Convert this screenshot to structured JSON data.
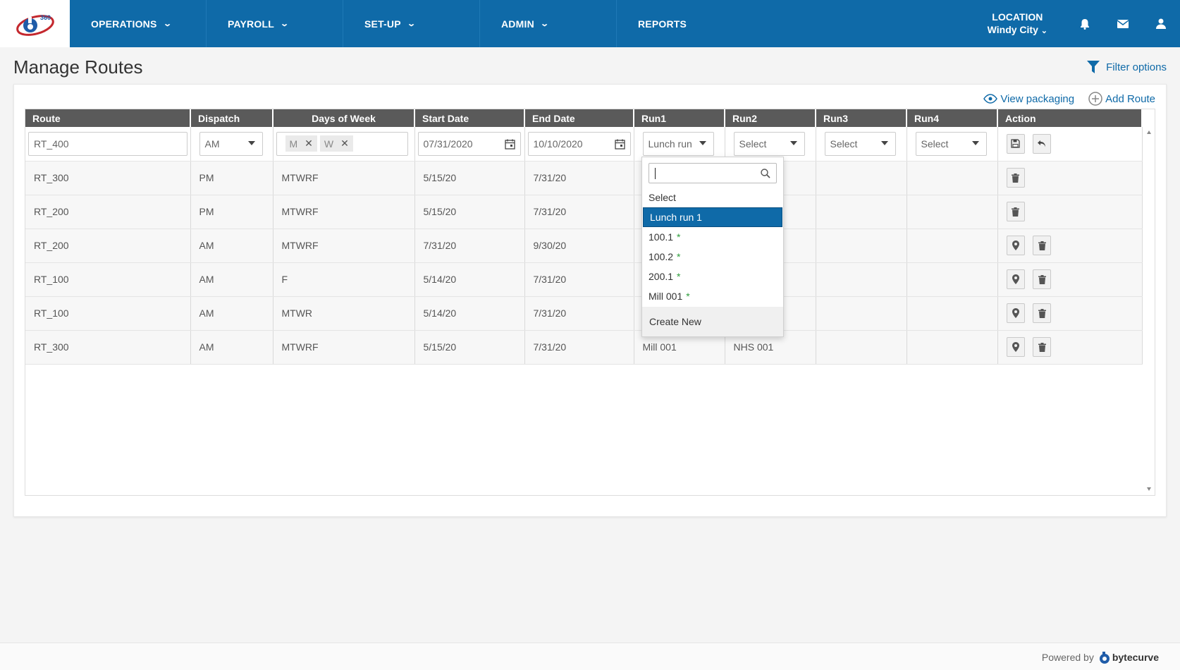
{
  "nav": {
    "items": [
      {
        "label": "OPERATIONS"
      },
      {
        "label": "PAYROLL"
      },
      {
        "label": "SET-UP"
      },
      {
        "label": "ADMIN"
      },
      {
        "label": "REPORTS"
      }
    ],
    "location_label": "LOCATION",
    "location_value": "Windy City"
  },
  "page": {
    "title": "Manage Routes",
    "filter_label": "Filter options",
    "view_packaging_label": "View packaging",
    "add_route_label": "Add Route"
  },
  "table": {
    "headers": [
      "Route",
      "Dispatch",
      "Days of Week",
      "Start Date",
      "End Date",
      "Run1",
      "Run2",
      "Run3",
      "Run4",
      "Action"
    ],
    "edit_row": {
      "route": "RT_400",
      "dispatch": "AM",
      "days": [
        "M",
        "W"
      ],
      "start_date": "07/31/2020",
      "end_date": "10/10/2020",
      "run1": "Lunch run",
      "run2": "Select",
      "run3": "Select",
      "run4": "Select"
    },
    "rows": [
      {
        "route": "RT_300",
        "dispatch": "PM",
        "days": "MTWRF",
        "start": "5/15/20",
        "end": "7/31/20",
        "run1": "",
        "run2": "",
        "run3": "",
        "run4": ""
      },
      {
        "route": "RT_200",
        "dispatch": "PM",
        "days": "MTWRF",
        "start": "5/15/20",
        "end": "7/31/20",
        "run1": "",
        "run2": "",
        "run3": "",
        "run4": ""
      },
      {
        "route": "RT_200",
        "dispatch": "AM",
        "days": "MTWRF",
        "start": "7/31/20",
        "end": "9/30/20",
        "run1": "",
        "run2": "",
        "run3": "",
        "run4": ""
      },
      {
        "route": "RT_100",
        "dispatch": "AM",
        "days": "F",
        "start": "5/14/20",
        "end": "7/31/20",
        "run1": "",
        "run2": "",
        "run3": "",
        "run4": ""
      },
      {
        "route": "RT_100",
        "dispatch": "AM",
        "days": "MTWR",
        "start": "5/14/20",
        "end": "7/31/20",
        "run1": "",
        "run2": "",
        "run3": "",
        "run4": ""
      },
      {
        "route": "RT_300",
        "dispatch": "AM",
        "days": "MTWRF",
        "start": "5/15/20",
        "end": "7/31/20",
        "run1": "Mill 001",
        "run2": "NHS 001",
        "run3": "",
        "run4": ""
      }
    ]
  },
  "dropdown": {
    "search_value": "",
    "options": [
      {
        "label": "Select",
        "star": "",
        "selected": false
      },
      {
        "label": "Lunch run 1",
        "star": "",
        "selected": true
      },
      {
        "label": "100.1",
        "star": "*",
        "selected": false
      },
      {
        "label": "100.2",
        "star": "*",
        "selected": false
      },
      {
        "label": "200.1",
        "star": "*",
        "selected": false
      },
      {
        "label": "Mill 001",
        "star": "*",
        "selected": false
      }
    ],
    "create_new_label": "Create New"
  },
  "footer": {
    "powered_by": "Powered by",
    "brand": "bytecurve"
  },
  "colors": {
    "primary": "#0f6aa8",
    "header_bg": "#5a5a5a",
    "star": "#2e9d3c"
  }
}
